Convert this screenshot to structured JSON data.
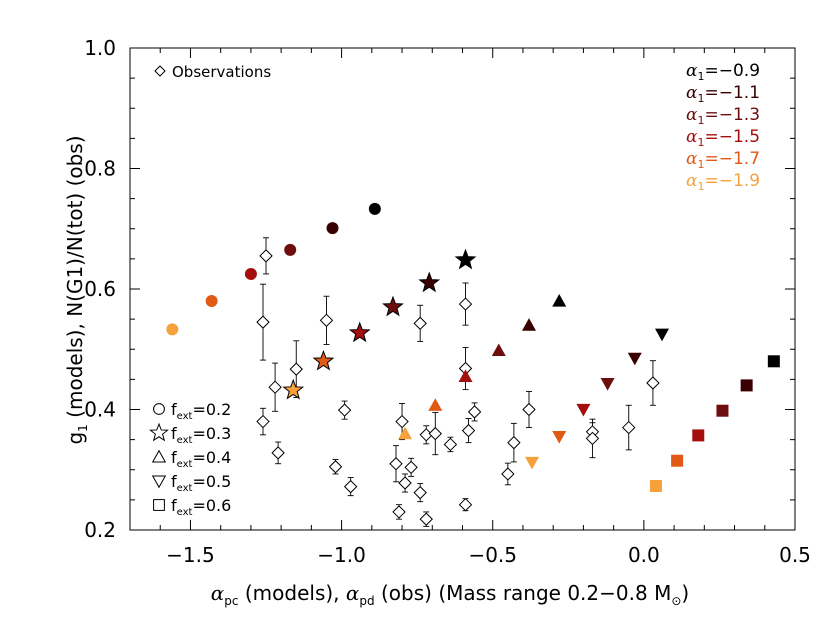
{
  "chart_data": {
    "type": "scatter",
    "xlim": [
      -1.7,
      0.5
    ],
    "ylim": [
      0.2,
      1.0
    ],
    "xticks": [
      {
        "value": -1.5,
        "label": "−1.5"
      },
      {
        "value": -1.0,
        "label": "−1.0"
      },
      {
        "value": -0.5,
        "label": "−0.5"
      },
      {
        "value": 0.0,
        "label": "0.0"
      },
      {
        "value": 0.5,
        "label": "0.5"
      }
    ],
    "yticks": [
      {
        "value": 0.2,
        "label": "0.2"
      },
      {
        "value": 0.4,
        "label": "0.4"
      },
      {
        "value": 0.6,
        "label": "0.6"
      },
      {
        "value": 0.8,
        "label": "0.8"
      },
      {
        "value": 1.0,
        "label": "1.0"
      }
    ],
    "xlabel": "αpc (models), αpd (obs) (Mass range 0.2−0.8 M⊙)",
    "ylabel": "g1 (models), N(G1)/N(tot) (obs)",
    "observations": {
      "legend_label": "Observations",
      "points": [
        {
          "x": -1.25,
          "y": 0.655,
          "err": 0.03
        },
        {
          "x": -1.26,
          "y": 0.545,
          "err": 0.063
        },
        {
          "x": -1.15,
          "y": 0.467,
          "err": 0.047
        },
        {
          "x": -1.22,
          "y": 0.437,
          "err": 0.04
        },
        {
          "x": -1.26,
          "y": 0.38,
          "err": 0.022
        },
        {
          "x": -1.21,
          "y": 0.328,
          "err": 0.018
        },
        {
          "x": -1.05,
          "y": 0.548,
          "err": 0.04
        },
        {
          "x": -0.99,
          "y": 0.399,
          "err": 0.015
        },
        {
          "x": -1.02,
          "y": 0.305,
          "err": 0.012
        },
        {
          "x": -0.97,
          "y": 0.272,
          "err": 0.015
        },
        {
          "x": -0.82,
          "y": 0.31,
          "err": 0.03
        },
        {
          "x": -0.8,
          "y": 0.38,
          "err": 0.03
        },
        {
          "x": -0.79,
          "y": 0.278,
          "err": 0.015
        },
        {
          "x": -0.77,
          "y": 0.304,
          "err": 0.015
        },
        {
          "x": -0.81,
          "y": 0.23,
          "err": 0.012
        },
        {
          "x": -0.74,
          "y": 0.543,
          "err": 0.03
        },
        {
          "x": -0.74,
          "y": 0.262,
          "err": 0.015
        },
        {
          "x": -0.72,
          "y": 0.218,
          "err": 0.012
        },
        {
          "x": -0.72,
          "y": 0.358,
          "err": 0.015
        },
        {
          "x": -0.69,
          "y": 0.36,
          "err": 0.035
        },
        {
          "x": -0.64,
          "y": 0.342,
          "err": 0.012
        },
        {
          "x": -0.59,
          "y": 0.575,
          "err": 0.035
        },
        {
          "x": -0.59,
          "y": 0.468,
          "err": 0.035
        },
        {
          "x": -0.58,
          "y": 0.365,
          "err": 0.02
        },
        {
          "x": -0.56,
          "y": 0.396,
          "err": 0.015
        },
        {
          "x": -0.59,
          "y": 0.242,
          "err": 0.01
        },
        {
          "x": -0.45,
          "y": 0.293,
          "err": 0.018
        },
        {
          "x": -0.43,
          "y": 0.345,
          "err": 0.032
        },
        {
          "x": -0.38,
          "y": 0.4,
          "err": 0.03
        },
        {
          "x": -0.17,
          "y": 0.363,
          "err": 0.015
        },
        {
          "x": -0.17,
          "y": 0.352,
          "err": 0.032
        },
        {
          "x": -0.05,
          "y": 0.37,
          "err": 0.037
        },
        {
          "x": 0.03,
          "y": 0.444,
          "err": 0.037
        }
      ]
    },
    "alpha_legend": [
      {
        "prefix": "α",
        "sub": "1",
        "value": "=−0.9",
        "color": "#000000"
      },
      {
        "prefix": "α",
        "sub": "1",
        "value": "=−1.1",
        "color": "#380000"
      },
      {
        "prefix": "α",
        "sub": "1",
        "value": "=−1.3",
        "color": "#6e0d0d"
      },
      {
        "prefix": "α",
        "sub": "1",
        "value": "=−1.5",
        "color": "#a30e0e"
      },
      {
        "prefix": "α",
        "sub": "1",
        "value": "=−1.7",
        "color": "#e05a15"
      },
      {
        "prefix": "α",
        "sub": "1",
        "value": "=−1.9",
        "color": "#f5a23c"
      }
    ],
    "fext_legend": [
      {
        "marker": "circle",
        "prefix": "f",
        "sub": "ext",
        "value": "=0.2"
      },
      {
        "marker": "star",
        "prefix": "f",
        "sub": "ext",
        "value": "=0.3"
      },
      {
        "marker": "triangle-up",
        "prefix": "f",
        "sub": "ext",
        "value": "=0.4"
      },
      {
        "marker": "triangle-down",
        "prefix": "f",
        "sub": "ext",
        "value": "=0.5"
      },
      {
        "marker": "square",
        "prefix": "f",
        "sub": "ext",
        "value": "=0.6"
      }
    ],
    "series": [
      {
        "fext": 0.2,
        "marker": "circle",
        "points": [
          {
            "x": -0.89,
            "y": 0.733,
            "color": "#000000"
          },
          {
            "x": -1.03,
            "y": 0.701,
            "color": "#380000"
          },
          {
            "x": -1.17,
            "y": 0.665,
            "color": "#6e0d0d"
          },
          {
            "x": -1.3,
            "y": 0.625,
            "color": "#a30e0e"
          },
          {
            "x": -1.43,
            "y": 0.58,
            "color": "#e05a15"
          },
          {
            "x": -1.56,
            "y": 0.533,
            "color": "#f5a23c"
          }
        ]
      },
      {
        "fext": 0.3,
        "marker": "star",
        "points": [
          {
            "x": -0.59,
            "y": 0.648,
            "color": "#000000"
          },
          {
            "x": -0.71,
            "y": 0.61,
            "color": "#380000"
          },
          {
            "x": -0.83,
            "y": 0.57,
            "color": "#6e0d0d"
          },
          {
            "x": -0.94,
            "y": 0.527,
            "color": "#a30e0e"
          },
          {
            "x": -1.06,
            "y": 0.48,
            "color": "#e05a15"
          },
          {
            "x": -1.16,
            "y": 0.432,
            "color": "#f5a23c"
          }
        ]
      },
      {
        "fext": 0.4,
        "marker": "triangle-up",
        "points": [
          {
            "x": -0.28,
            "y": 0.58,
            "color": "#000000"
          },
          {
            "x": -0.38,
            "y": 0.54,
            "color": "#380000"
          },
          {
            "x": -0.48,
            "y": 0.498,
            "color": "#6e0d0d"
          },
          {
            "x": -0.59,
            "y": 0.455,
            "color": "#a30e0e"
          },
          {
            "x": -0.69,
            "y": 0.407,
            "color": "#e05a15"
          },
          {
            "x": -0.79,
            "y": 0.36,
            "color": "#f5a23c"
          }
        ]
      },
      {
        "fext": 0.5,
        "marker": "triangle-down",
        "points": [
          {
            "x": 0.06,
            "y": 0.525,
            "color": "#000000"
          },
          {
            "x": -0.03,
            "y": 0.485,
            "color": "#380000"
          },
          {
            "x": -0.12,
            "y": 0.443,
            "color": "#6e0d0d"
          },
          {
            "x": -0.2,
            "y": 0.4,
            "color": "#a30e0e"
          },
          {
            "x": -0.28,
            "y": 0.355,
            "color": "#e05a15"
          },
          {
            "x": -0.37,
            "y": 0.312,
            "color": "#f5a23c"
          }
        ]
      },
      {
        "fext": 0.6,
        "marker": "square",
        "points": [
          {
            "x": 0.43,
            "y": 0.48,
            "color": "#000000"
          },
          {
            "x": 0.34,
            "y": 0.44,
            "color": "#380000"
          },
          {
            "x": 0.26,
            "y": 0.398,
            "color": "#6e0d0d"
          },
          {
            "x": 0.18,
            "y": 0.357,
            "color": "#a30e0e"
          },
          {
            "x": 0.11,
            "y": 0.315,
            "color": "#e05a15"
          },
          {
            "x": 0.04,
            "y": 0.273,
            "color": "#f5a23c"
          }
        ]
      }
    ]
  }
}
